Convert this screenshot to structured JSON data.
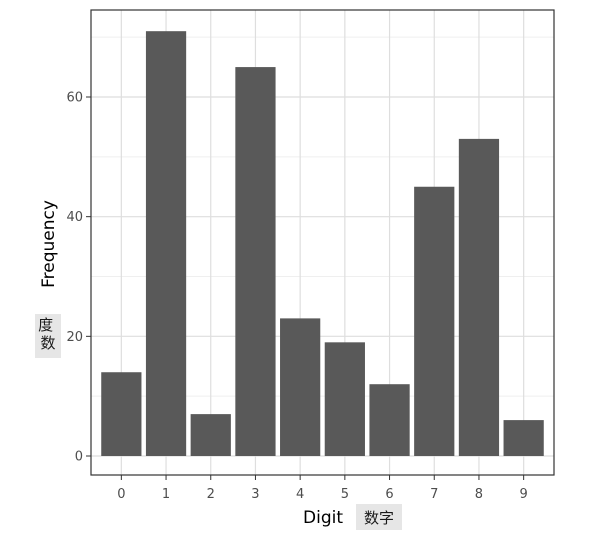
{
  "chart_data": {
    "type": "bar",
    "categories": [
      "0",
      "1",
      "2",
      "3",
      "4",
      "5",
      "6",
      "7",
      "8",
      "9"
    ],
    "values": [
      14,
      71,
      7,
      65,
      23,
      19,
      12,
      45,
      53,
      6
    ],
    "xlabel": "Digit",
    "xlabel_zh": "数字",
    "ylabel": "Frequency",
    "ylabel_zh": "度数",
    "ylim": [
      0,
      74
    ],
    "y_ticks": [
      0,
      20,
      40,
      60
    ],
    "grid": true,
    "legend": "none"
  },
  "colors": {
    "bar": "#595959",
    "panel_border": "#333333",
    "grid_major": "#dedede",
    "grid_minor": "#efefef",
    "tag_bg": "#e6e6e6"
  }
}
